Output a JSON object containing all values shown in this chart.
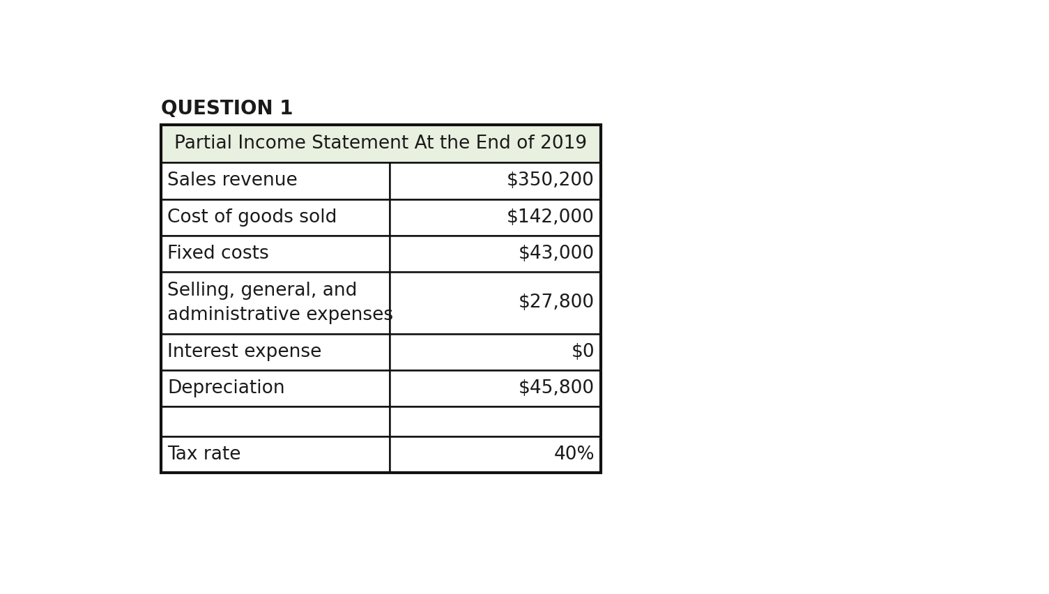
{
  "title": "QUESTION 1",
  "table_title": "Partial Income Statement At the End of 2019",
  "table_title_bg": "#e8f0e0",
  "rows": [
    {
      "label": "Sales revenue",
      "value": "$350,200",
      "multiline": false
    },
    {
      "label": "Cost of goods sold",
      "value": "$142,000",
      "multiline": false
    },
    {
      "label": "Fixed costs",
      "value": "$43,000",
      "multiline": false
    },
    {
      "label": "Selling, general, and\nadministrative expenses",
      "value": "$27,800",
      "multiline": true
    },
    {
      "label": "Interest expense",
      "value": "$0",
      "multiline": false
    },
    {
      "label": "Depreciation",
      "value": "$45,800",
      "multiline": false
    },
    {
      "label": "",
      "value": "",
      "multiline": false
    },
    {
      "label": "Tax rate",
      "value": "40%",
      "multiline": false
    }
  ],
  "bg_color": "#ffffff",
  "border_color": "#111111",
  "text_color": "#1a1a1a",
  "title_fontsize": 20,
  "header_fontsize": 19,
  "cell_fontsize": 19
}
